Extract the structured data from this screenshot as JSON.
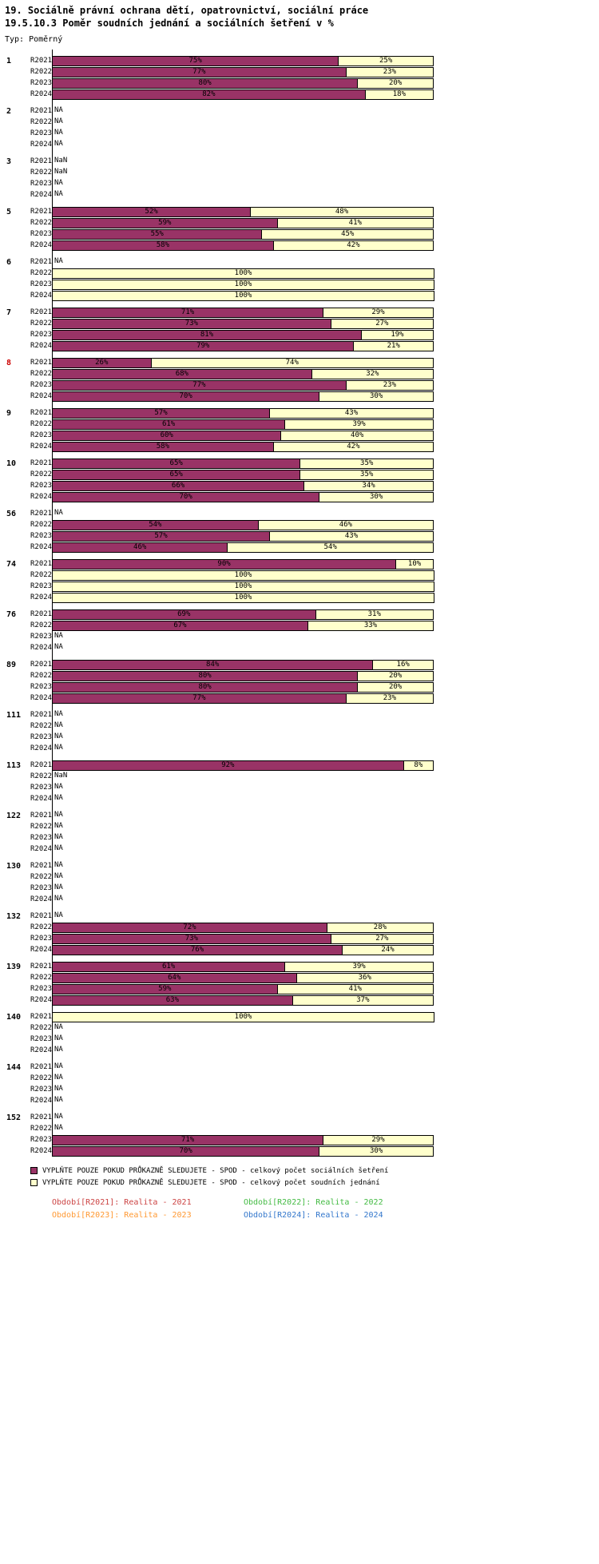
{
  "colors": {
    "dark": "#993366",
    "light": "#ffffcc",
    "axis": "#000000",
    "highlight_group": "#cc0000",
    "period_2021": "#cc4444",
    "period_2022": "#44bb44",
    "period_2023": "#ff9933",
    "period_2024": "#3377cc"
  },
  "legend": {
    "dark_label": "VYPLŇTE POUZE POKUD PRŮKAZNĚ SLEDUJETE - SPOD - celkový počet sociálních šetření",
    "light_label": "VYPLŇTE POUZE POKUD PRŮKAZNĚ SLEDUJETE - SPOD - celkový počet soudních jednání",
    "periods": [
      {
        "id": "R2021",
        "label": "Období[R2021]: Realita - 2021",
        "color_key": "period_2021"
      },
      {
        "id": "R2022",
        "label": "Období[R2022]: Realita - 2022",
        "color_key": "period_2022"
      },
      {
        "id": "R2023",
        "label": "Období[R2023]: Realita - 2023",
        "color_key": "period_2023"
      },
      {
        "id": "R2024",
        "label": "Období[R2024]: Realita - 2024",
        "color_key": "period_2024"
      }
    ]
  },
  "chart_data": {
    "type": "bar",
    "stacked": true,
    "orientation": "horizontal",
    "title": "19. Sociálně právní ochrana dětí, opatrovnictví, sociální práce",
    "subtitle": "19.5.10.3 Poměr soudních jednání a sociálních šetření v %",
    "type_label": "Typ: Poměrný",
    "unit": "%",
    "xlim": [
      0,
      100
    ],
    "series": [
      "SPOD - celkový počet sociálních šetření",
      "SPOD - celkový počet soudních jednání"
    ],
    "periods": [
      "R2021",
      "R2022",
      "R2023",
      "R2024"
    ],
    "groups": [
      {
        "id": "1",
        "highlight": false,
        "rows": [
          [
            75,
            25
          ],
          [
            77,
            23
          ],
          [
            80,
            20
          ],
          [
            82,
            18
          ]
        ]
      },
      {
        "id": "2",
        "highlight": false,
        "rows": [
          "NA",
          "NA",
          "NA",
          "NA"
        ]
      },
      {
        "id": "3",
        "highlight": false,
        "rows": [
          "NaN",
          "NaN",
          "NA",
          "NA"
        ]
      },
      {
        "id": "5",
        "highlight": false,
        "rows": [
          [
            52,
            48
          ],
          [
            59,
            41
          ],
          [
            55,
            45
          ],
          [
            58,
            42
          ]
        ]
      },
      {
        "id": "6",
        "highlight": false,
        "rows": [
          "NA",
          [
            0,
            100
          ],
          [
            0,
            100
          ],
          [
            0,
            100
          ]
        ]
      },
      {
        "id": "7",
        "highlight": false,
        "rows": [
          [
            71,
            29
          ],
          [
            73,
            27
          ],
          [
            81,
            19
          ],
          [
            79,
            21
          ]
        ]
      },
      {
        "id": "8",
        "highlight": true,
        "rows": [
          [
            26,
            74
          ],
          [
            68,
            32
          ],
          [
            77,
            23
          ],
          [
            70,
            30
          ]
        ]
      },
      {
        "id": "9",
        "highlight": false,
        "rows": [
          [
            57,
            43
          ],
          [
            61,
            39
          ],
          [
            60,
            40
          ],
          [
            58,
            42
          ]
        ]
      },
      {
        "id": "10",
        "highlight": false,
        "rows": [
          [
            65,
            35
          ],
          [
            65,
            35
          ],
          [
            66,
            34
          ],
          [
            70,
            30
          ]
        ]
      },
      {
        "id": "56",
        "highlight": false,
        "rows": [
          "NA",
          [
            54,
            46
          ],
          [
            57,
            43
          ],
          [
            46,
            54
          ]
        ]
      },
      {
        "id": "74",
        "highlight": false,
        "rows": [
          [
            90,
            10
          ],
          [
            0,
            100
          ],
          [
            0,
            100
          ],
          [
            0,
            100
          ]
        ]
      },
      {
        "id": "76",
        "highlight": false,
        "rows": [
          [
            69,
            31
          ],
          [
            67,
            33
          ],
          "NA",
          "NA"
        ]
      },
      {
        "id": "89",
        "highlight": false,
        "rows": [
          [
            84,
            16
          ],
          [
            80,
            20
          ],
          [
            80,
            20
          ],
          [
            77,
            23
          ]
        ]
      },
      {
        "id": "111",
        "highlight": false,
        "rows": [
          "NA",
          "NA",
          "NA",
          "NA"
        ]
      },
      {
        "id": "113",
        "highlight": false,
        "rows": [
          [
            92,
            8
          ],
          "NaN",
          "NA",
          "NA"
        ]
      },
      {
        "id": "122",
        "highlight": false,
        "rows": [
          "NA",
          "NA",
          "NA",
          "NA"
        ]
      },
      {
        "id": "130",
        "highlight": false,
        "rows": [
          "NA",
          "NA",
          "NA",
          "NA"
        ]
      },
      {
        "id": "132",
        "highlight": false,
        "rows": [
          "NA",
          [
            72,
            28
          ],
          [
            73,
            27
          ],
          [
            76,
            24
          ]
        ]
      },
      {
        "id": "139",
        "highlight": false,
        "rows": [
          [
            61,
            39
          ],
          [
            64,
            36
          ],
          [
            59,
            41
          ],
          [
            63,
            37
          ]
        ]
      },
      {
        "id": "140",
        "highlight": false,
        "rows": [
          [
            0,
            100
          ],
          "NA",
          "NA",
          "NA"
        ]
      },
      {
        "id": "144",
        "highlight": false,
        "rows": [
          "NA",
          "NA",
          "NA",
          "NA"
        ]
      },
      {
        "id": "152",
        "highlight": false,
        "rows": [
          "NA",
          "NA",
          [
            71,
            29
          ],
          [
            70,
            30
          ]
        ]
      }
    ]
  }
}
